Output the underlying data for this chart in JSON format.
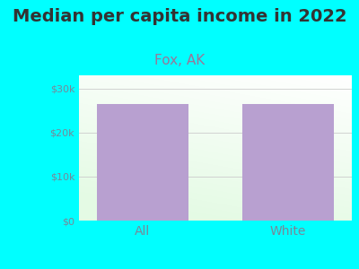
{
  "title": "Median per capita income in 2022",
  "subtitle": "Fox, AK",
  "categories": [
    "All",
    "White"
  ],
  "values": [
    26500,
    26500
  ],
  "bar_color": "#b8a0d0",
  "background_outer": "#00FFFF",
  "yticks": [
    0,
    10000,
    20000,
    30000
  ],
  "ytick_labels": [
    "$0",
    "$10k",
    "$20k",
    "$30k"
  ],
  "ylim": [
    0,
    33000
  ],
  "title_fontsize": 14,
  "subtitle_fontsize": 11,
  "subtitle_color": "#997799",
  "tick_label_color": "#778899",
  "xlabel_fontsize": 10,
  "ytick_fontsize": 8
}
